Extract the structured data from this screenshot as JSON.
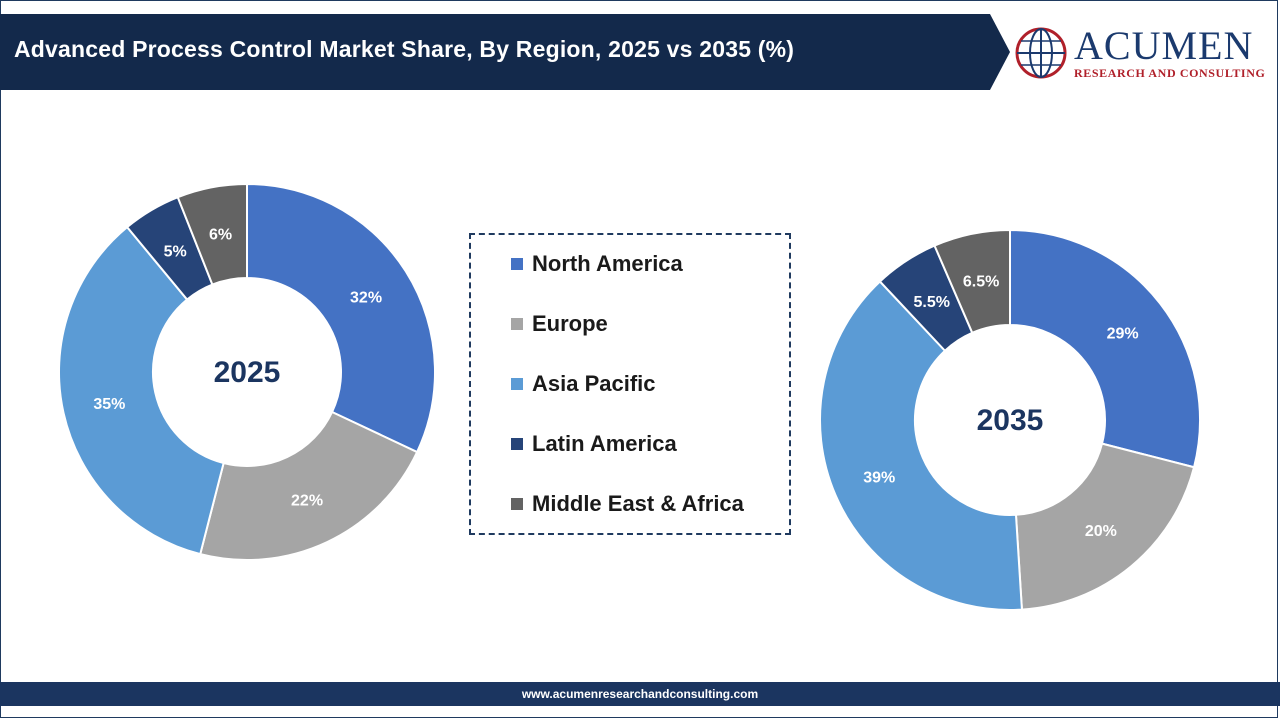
{
  "header": {
    "title": "Advanced Process Control Market Share, By Region, 2025 vs 2035 (%)",
    "band_color": "#13294b"
  },
  "logo": {
    "word": "ACUMEN",
    "subtitle": "RESEARCH AND CONSULTING",
    "globe_color": "#b0202a",
    "word_color": "#1b3a6e"
  },
  "legend": {
    "items": [
      {
        "label": "North America",
        "color": "#4472c4"
      },
      {
        "label": "Europe",
        "color": "#a5a5a5"
      },
      {
        "label": "Asia Pacific",
        "color": "#5b9bd5"
      },
      {
        "label": "Latin America",
        "color": "#264478"
      },
      {
        "label": "Middle East & Africa",
        "color": "#636363"
      }
    ]
  },
  "chart_data": [
    {
      "type": "pie",
      "center_label": "2025",
      "categories": [
        "North America",
        "Europe",
        "Asia Pacific",
        "Latin America",
        "Middle East & Africa"
      ],
      "values": [
        32,
        22,
        35,
        5,
        6
      ],
      "labels": [
        "32%",
        "22%",
        "35%",
        "5%",
        "6%"
      ],
      "colors": [
        "#4472c4",
        "#a5a5a5",
        "#5b9bd5",
        "#264478",
        "#636363"
      ]
    },
    {
      "type": "pie",
      "center_label": "2035",
      "categories": [
        "North America",
        "Europe",
        "Asia Pacific",
        "Latin America",
        "Middle East & Africa"
      ],
      "values": [
        29,
        20,
        39,
        5.5,
        6.5
      ],
      "labels": [
        "29%",
        "20%",
        "39%",
        "5.5%",
        "6.5%"
      ],
      "colors": [
        "#4472c4",
        "#a5a5a5",
        "#5b9bd5",
        "#264478",
        "#636363"
      ]
    }
  ],
  "footer": {
    "url": "www.acumenresearchandconsulting.com"
  }
}
